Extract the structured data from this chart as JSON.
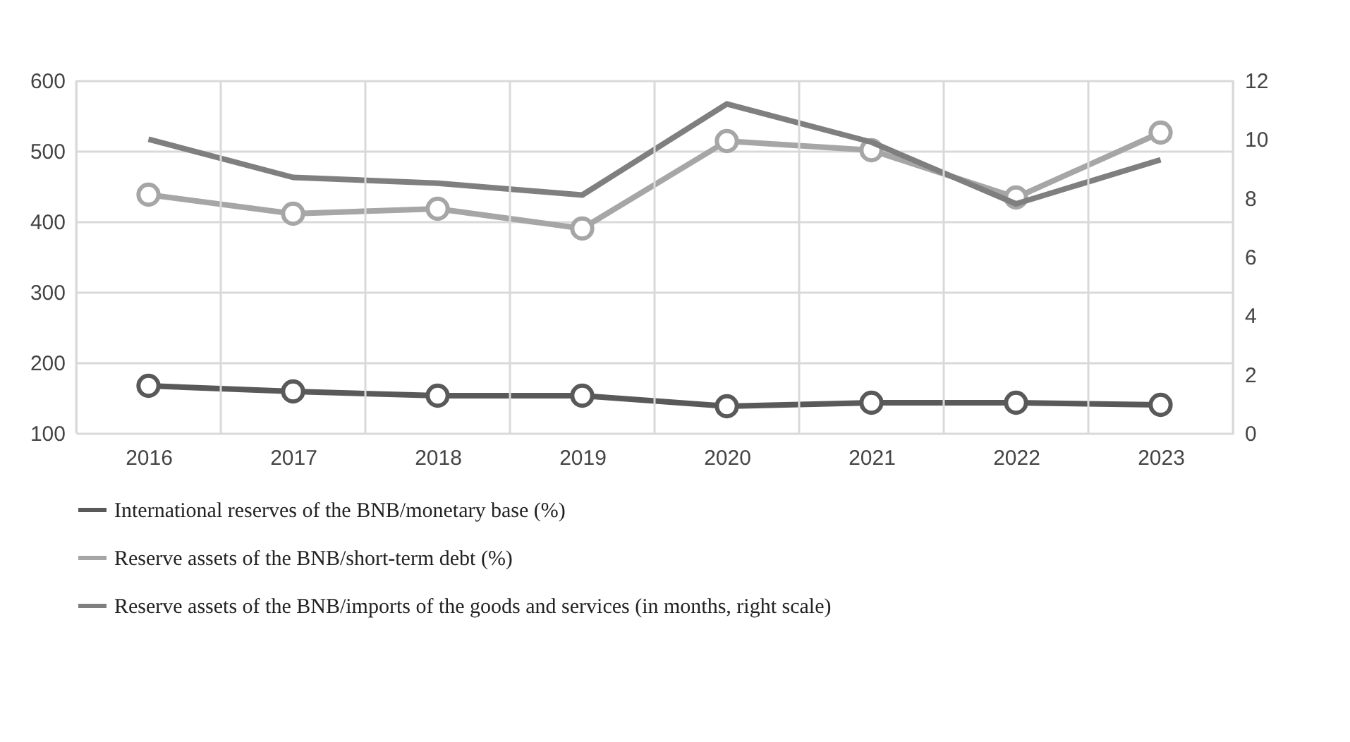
{
  "chart_data": {
    "type": "line",
    "categories": [
      "2016",
      "2017",
      "2018",
      "2019",
      "2020",
      "2021",
      "2022",
      "2023"
    ],
    "series": [
      {
        "name": "International reserves of the BNB/monetary base (%)",
        "color": "#595959",
        "marker": "circle",
        "values": [
          167,
          159,
          153,
          153,
          138,
          143,
          143,
          140
        ]
      },
      {
        "name": "Reserve assets of the BNB/short-term debt (%)",
        "color": "#a6a6a6",
        "marker": "circle",
        "values": [
          438,
          411,
          418,
          390,
          514,
          501,
          434,
          526
        ]
      },
      {
        "name": "Reserve assets of the BNB/imports of the goods and services (in months, right scale)",
        "color": "#7f7f7f",
        "marker": "none",
        "axis": "y2",
        "values": [
          10.0,
          8.7,
          8.5,
          8.1,
          11.2,
          9.9,
          7.8,
          9.3
        ]
      }
    ],
    "ylim": [
      100,
      600
    ],
    "yticks": [
      100,
      200,
      300,
      400,
      500,
      600
    ],
    "y2lim": [
      0,
      12
    ],
    "y2ticks": [
      0,
      2,
      4,
      6,
      8,
      10,
      12
    ],
    "grid": true,
    "legend": "bottom"
  }
}
